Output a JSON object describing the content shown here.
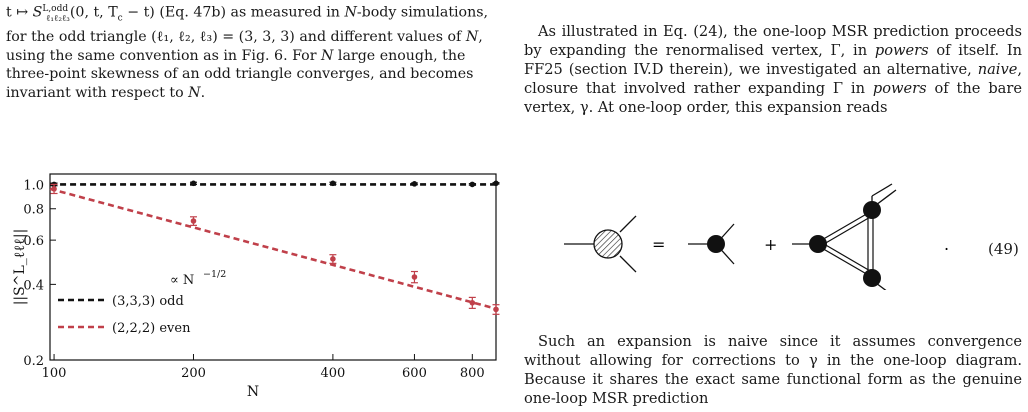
{
  "caption": {
    "prefix": "t ↦ ",
    "symbol": "S",
    "sup": "L,odd",
    "sub": "ℓ₁ℓ₂ℓ₃",
    "args": "(0, t, T",
    "args_sub": "c",
    "args_end": " − t) (Eq. 47b) as measured in ",
    "N1": "N",
    "rest1": "-body simulations, for the odd triangle (ℓ₁, ℓ₂, ℓ₃) = (3, 3, 3) and different values of ",
    "N2": "N",
    "rest2": ", using the same convention as in Fig. 6. For ",
    "N3": "N",
    "rest3": " large enough, the three-point skewness of an odd triangle converges, and becomes invariant with respect to ",
    "N4": "N",
    "rest4": "."
  },
  "text": {
    "para1_a": "As illustrated in Eq. (24), the one-loop MSR prediction proceeds by expanding the renormalised vertex, Γ, in ",
    "para1_powers1": "powers",
    "para1_b": " of itself. In FF25 (section IV.D therein), we investigated an alternative, ",
    "para1_naive": "naive",
    "para1_c": ", closure that involved rather expanding Γ in ",
    "para1_powers2": "powers",
    "para1_d": " of the bare vertex, γ. At one-loop order, this expansion reads",
    "eq_number": "(49)",
    "eq_equals": "=",
    "eq_plus": "+",
    "eq_dot": ".",
    "para2": "Such an expansion is naive since it assumes convergence without allowing for corrections to γ in the one-loop diagram. Because it shares the exact same functional form as the genuine one-loop MSR prediction"
  },
  "chart_data": {
    "type": "scatter",
    "xlabel": "N",
    "ylabel": "||S^L_ℓℓℓ||",
    "xscale": "log",
    "yscale": "log",
    "xlim": [
      98,
      900
    ],
    "ylim": [
      0.2,
      1.1
    ],
    "x_ticks": [
      "100",
      "200",
      "400",
      "600",
      "800"
    ],
    "x_tick_values": [
      100,
      200,
      400,
      600,
      800
    ],
    "y_ticks": [
      "0.2",
      "0.4",
      "0.6",
      "0.8",
      "1.0"
    ],
    "y_tick_values": [
      0.2,
      0.4,
      0.6,
      0.8,
      1.0
    ],
    "annotation": "∝ N",
    "annotation_sup": "−1/2",
    "legend_position": "lower-left",
    "series": [
      {
        "name": "(3,3,3) odd",
        "color": "#111111",
        "x": [
          100,
          200,
          400,
          600,
          800,
          900
        ],
        "y": [
          1.0,
          1.01,
          1.01,
          1.005,
          1.0,
          1.01
        ],
        "err": [
          0.012,
          0.01,
          0.01,
          0.008,
          0.007,
          0.006
        ],
        "fit": [
          1.0,
          1.0
        ]
      },
      {
        "name": "(2,2,2) even",
        "color": "#c0404a",
        "x": [
          100,
          200,
          400,
          600,
          800,
          900
        ],
        "y": [
          0.96,
          0.715,
          0.505,
          0.428,
          0.338,
          0.318
        ],
        "err": [
          0.04,
          0.028,
          0.02,
          0.022,
          0.017,
          0.014
        ],
        "fit": [
          0.96,
          0.32
        ]
      }
    ]
  }
}
